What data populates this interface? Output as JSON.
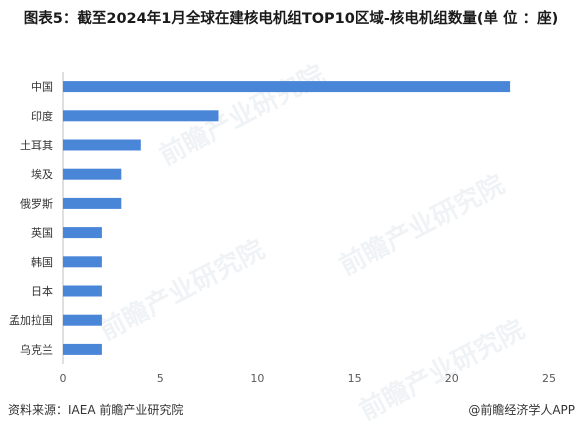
{
  "title": "图表5：截至2024年1月全球在建核电机组TOP10区域-核电机组数量(单 位 ：座)",
  "footer": {
    "source": "资料来源：IAEA 前瞻产业研究院",
    "brand": "@前瞻经济学人APP"
  },
  "watermark": "前瞻产业研究院",
  "colors": {
    "bar": "#4a86d8",
    "axis": "#bfbfbf",
    "tick_text": "#595959"
  },
  "chart_data": {
    "type": "bar",
    "orientation": "horizontal",
    "categories": [
      "中国",
      "印度",
      "土耳其",
      "埃及",
      "俄罗斯",
      "英国",
      "韩国",
      "日本",
      "孟加拉国",
      "乌克兰"
    ],
    "values": [
      23,
      8,
      4,
      3,
      3,
      2,
      2,
      2,
      2,
      2
    ],
    "xlim": [
      0,
      25
    ],
    "xticks": [
      0,
      5,
      10,
      15,
      20,
      25
    ],
    "grid": false,
    "legend": "none"
  }
}
